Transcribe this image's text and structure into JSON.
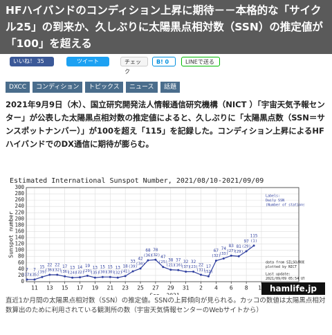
{
  "header": {
    "title": "HFハイバンドのコンディション上昇に期待－－本格的な「サイクル25」の到来か、久しぶりに太陽黒点相対数（SSN）の推定値が「100」を超える"
  },
  "social": {
    "like": "いいね！",
    "like_count": 35,
    "tweet": "ツイート",
    "check": "チェック",
    "hatena": "B!",
    "hatena_count": 0,
    "line": "LINEで送る"
  },
  "tags": [
    "DXCC",
    "コンディション",
    "トピックス",
    "ニュース",
    "話題"
  ],
  "body": "2021年9月9日（木）、国立研究開発法人情報通信研究機構（NICT ）「宇宙天気予報センター」が公表した太陽黒点相対数の推定値によると、久しぶりに「太陽黒点数（SSN＝サンスポットナンバー）」が100を超え「115」を記録した。コンディション上昇によるHFハイバンドでのDX通信に期待が膨らむ。",
  "chart_data": {
    "type": "line",
    "title": "Estimated International Sunspot Number, 2021/08/10-2021/09/09",
    "ylabel": "Sunspot number",
    "xlabel": "Sep. 2021",
    "categories": [
      null,
      "11",
      null,
      "13",
      null,
      "15",
      null,
      "17",
      null,
      "19",
      null,
      "21",
      null,
      "23",
      null,
      "25",
      null,
      "27",
      null,
      "29",
      null,
      "31",
      null,
      "2",
      null,
      "4",
      null,
      "6",
      null,
      "8",
      null,
      "10"
    ],
    "values": [
      7,
      7,
      15,
      22,
      22,
      17,
      13,
      14,
      19,
      13,
      15,
      15,
      13,
      18,
      33,
      42,
      68,
      70,
      47,
      38,
      37,
      32,
      32,
      22,
      17,
      67,
      74,
      83,
      81,
      97,
      115,
      null
    ],
    "station_labels": [
      "(37)",
      "(35)",
      "(39)",
      "(36)",
      "(32)",
      "(36)",
      "(24)",
      "(22)",
      "(29)",
      "(35)",
      "(30)",
      "(30)",
      "(32)",
      "(41)",
      "(39)",
      "(34)",
      "(36)",
      "(32)",
      "(25)",
      "(21)",
      "(16)",
      "(37)",
      "(23)",
      "(31)",
      "(52)",
      "(32)",
      "(33)",
      "(27)",
      "(29)",
      "(29)",
      "(1)",
      null
    ],
    "color": "#2f3f9f",
    "grid": true,
    "ylim": [
      0,
      300
    ],
    "yticks": [
      0,
      20,
      40,
      60,
      80,
      100,
      120,
      140,
      160,
      180,
      200,
      220,
      240,
      260,
      280,
      300
    ],
    "legend": [
      "Labels:",
      "Daily SSN",
      "(Number of stations)"
    ],
    "notes": [
      "data from SILSO/ROB",
      "plotted by NICT",
      "Last update:",
      "2021/09/09 05:54 UT"
    ]
  },
  "watermark": "hamlife.jp",
  "caption": "直近1か月間の太陽黒点相対数（SSN）の推定値。SSNの上昇傾向が見られる。カッコの数値は太陽黒点相対数算出のために利用されている観測所の数（宇宙天気情報センターのWebサイトから）"
}
